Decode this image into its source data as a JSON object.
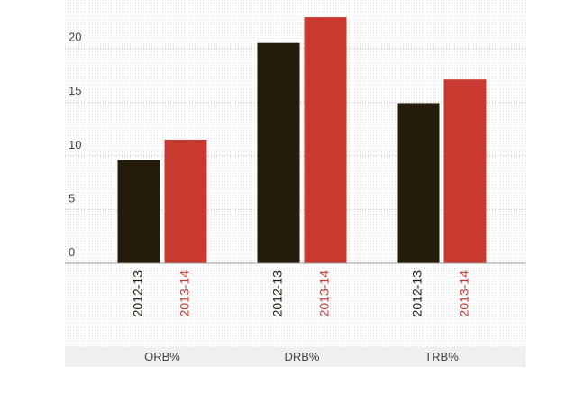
{
  "chart_data": {
    "type": "bar",
    "categories": [
      "ORB%",
      "DRB%",
      "TRB%"
    ],
    "series": [
      {
        "name": "2012-13",
        "color": "#231c0b",
        "values": [
          9.6,
          20.5,
          14.9
        ]
      },
      {
        "name": "2013-14",
        "color": "#c8392f",
        "values": [
          11.5,
          22.9,
          17.1
        ]
      }
    ],
    "ylim": [
      0,
      24.5
    ],
    "yticks": [
      0,
      5,
      10,
      15,
      20
    ],
    "grid": true
  }
}
